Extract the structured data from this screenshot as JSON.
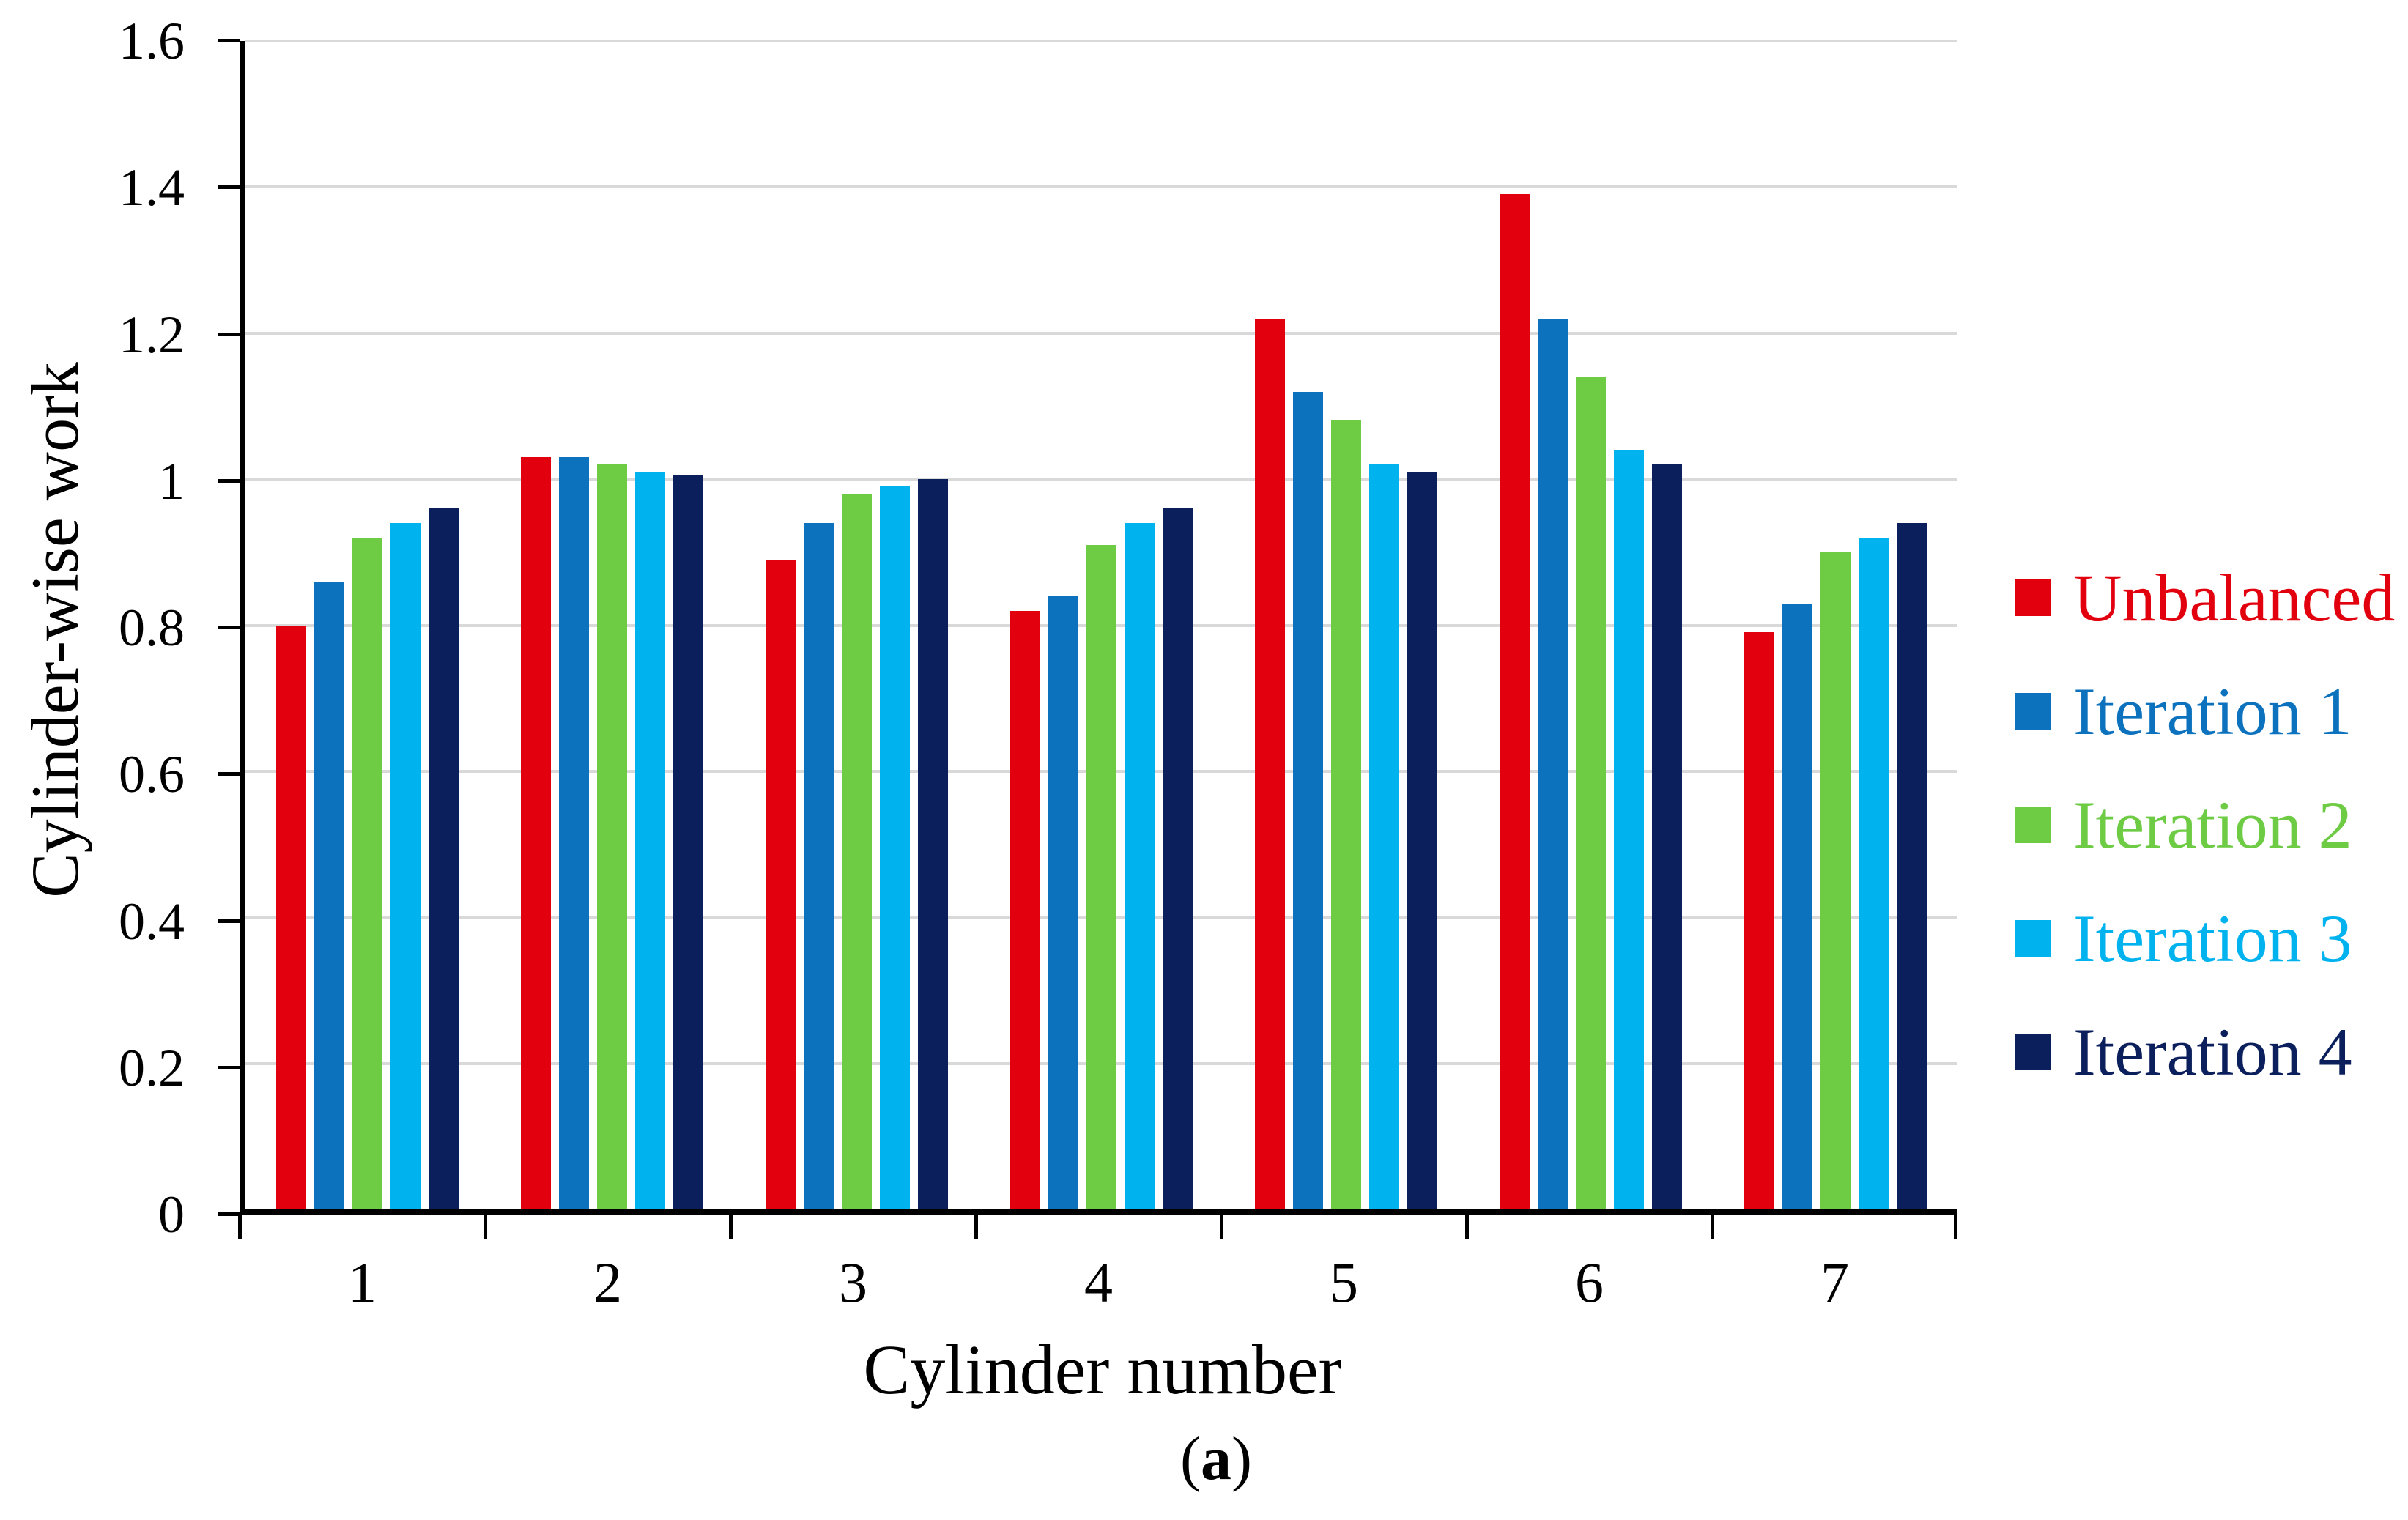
{
  "figure": {
    "caption_open": "(",
    "caption_letter": "a",
    "caption_close": ")"
  },
  "chart_data": {
    "type": "bar",
    "title": "",
    "xlabel": "Cylinder number",
    "ylabel": "Cylinder-wise work",
    "categories": [
      "1",
      "2",
      "3",
      "4",
      "5",
      "6",
      "7"
    ],
    "series": [
      {
        "name": "Unbalanced",
        "color": "#e2000f",
        "values": [
          0.8,
          1.03,
          0.89,
          0.82,
          1.22,
          1.39,
          0.79
        ]
      },
      {
        "name": "Iteration 1",
        "color": "#0d72bd",
        "values": [
          0.86,
          1.03,
          0.94,
          0.84,
          1.12,
          1.22,
          0.83
        ]
      },
      {
        "name": "Iteration 2",
        "color": "#6ecb44",
        "values": [
          0.92,
          1.02,
          0.98,
          0.91,
          1.08,
          1.14,
          0.9
        ]
      },
      {
        "name": "Iteration 3",
        "color": "#00b2ee",
        "values": [
          0.94,
          1.01,
          0.99,
          0.94,
          1.02,
          1.04,
          0.92
        ]
      },
      {
        "name": "Iteration 4",
        "color": "#0a1f5c",
        "values": [
          0.96,
          1.005,
          1.0,
          0.96,
          1.01,
          1.02,
          0.94
        ]
      }
    ],
    "ylim": [
      0,
      1.6
    ],
    "yticks": [
      "0",
      "0.2",
      "0.4",
      "0.6",
      "0.8",
      "1",
      "1.2",
      "1.4",
      "1.6"
    ],
    "grid": "horizontal",
    "legend_position": "right"
  }
}
